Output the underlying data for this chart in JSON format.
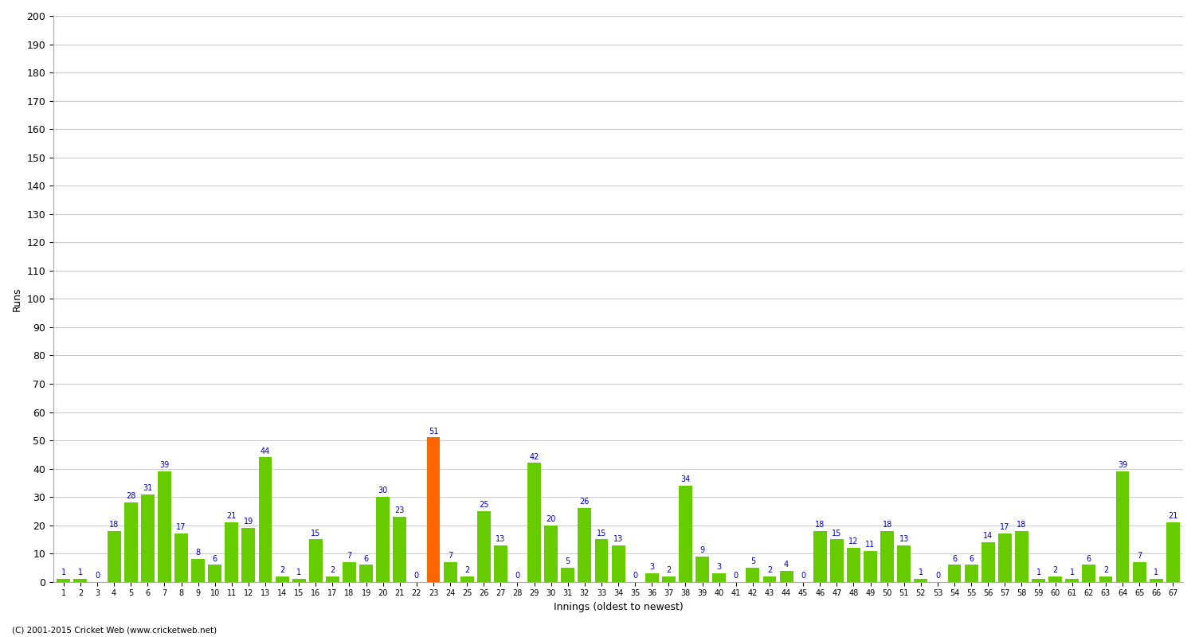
{
  "innings": [
    1,
    2,
    3,
    4,
    5,
    6,
    7,
    8,
    9,
    10,
    11,
    12,
    13,
    14,
    15,
    16,
    17,
    18,
    19,
    20,
    21,
    22,
    23,
    24,
    25,
    26,
    27,
    28,
    29,
    30,
    31,
    32,
    33,
    34,
    35,
    36,
    37,
    38,
    39,
    40,
    41,
    42,
    43,
    44,
    45,
    46,
    47,
    48,
    49,
    50,
    51,
    52,
    53,
    54,
    55,
    56,
    57,
    58,
    59,
    60,
    61,
    62,
    63,
    64,
    65,
    66,
    67
  ],
  "runs": [
    1,
    1,
    0,
    18,
    28,
    31,
    39,
    17,
    8,
    6,
    21,
    19,
    44,
    2,
    1,
    15,
    2,
    7,
    6,
    30,
    23,
    0,
    51,
    7,
    2,
    25,
    13,
    0,
    42,
    20,
    5,
    26,
    15,
    13,
    0,
    3,
    2,
    34,
    9,
    3,
    0,
    5,
    2,
    4,
    0,
    18,
    15,
    12,
    11,
    18,
    13,
    1,
    0,
    6,
    6,
    14,
    17,
    18,
    1,
    2,
    1,
    6,
    2,
    39,
    7,
    1,
    21
  ],
  "highlight_idx": 22,
  "bar_color": "#66cc00",
  "highlight_color": "#ff6600",
  "ylabel": "Runs",
  "xlabel": "Innings (oldest to newest)",
  "ylim": [
    0,
    200
  ],
  "yticks": [
    0,
    10,
    20,
    30,
    40,
    50,
    60,
    70,
    80,
    90,
    100,
    110,
    120,
    130,
    140,
    150,
    160,
    170,
    180,
    190,
    200
  ],
  "grid_color": "#cccccc",
  "label_color": "#0000cc",
  "footer": "(C) 2001-2015 Cricket Web (www.cricketweb.net)"
}
